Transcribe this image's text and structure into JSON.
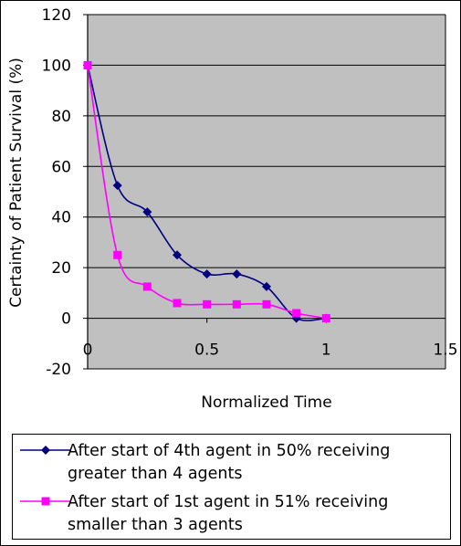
{
  "chart_data": {
    "type": "line",
    "title": "",
    "xlabel": "Normalized Time",
    "ylabel": "Certainty of Patient Survival (%)",
    "xlim": [
      0,
      1.5
    ],
    "ylim": [
      -20,
      120
    ],
    "x_ticks": [
      "0",
      "0.5",
      "1",
      "1.5"
    ],
    "x_tick_values": [
      0,
      0.5,
      1,
      1.5
    ],
    "y_ticks": [
      "120",
      "100",
      "80",
      "60",
      "40",
      "20",
      "0",
      "-20"
    ],
    "y_tick_values": [
      120,
      100,
      80,
      60,
      40,
      20,
      0,
      -20
    ],
    "grid": "horizontal",
    "plot_background": "#c0c0c0",
    "legend_position": "bottom",
    "series": [
      {
        "name": "After start of 4th agent in 50% receiving greater than 4 agents",
        "color": "#000080",
        "marker": "diamond",
        "x": [
          0,
          0.125,
          0.25,
          0.375,
          0.5,
          0.625,
          0.75,
          0.875,
          1.0
        ],
        "y": [
          100,
          52.5,
          42,
          25,
          17.5,
          17.5,
          12.5,
          0,
          0
        ]
      },
      {
        "name": "After start of 1st agent in 51% receiving smaller than 3 agents",
        "color": "#ff00ff",
        "marker": "square",
        "x": [
          0,
          0.125,
          0.25,
          0.375,
          0.5,
          0.625,
          0.75,
          0.875,
          1.0
        ],
        "y": [
          100,
          25,
          12.5,
          6,
          5.5,
          5.5,
          5.5,
          2,
          0
        ]
      }
    ]
  }
}
